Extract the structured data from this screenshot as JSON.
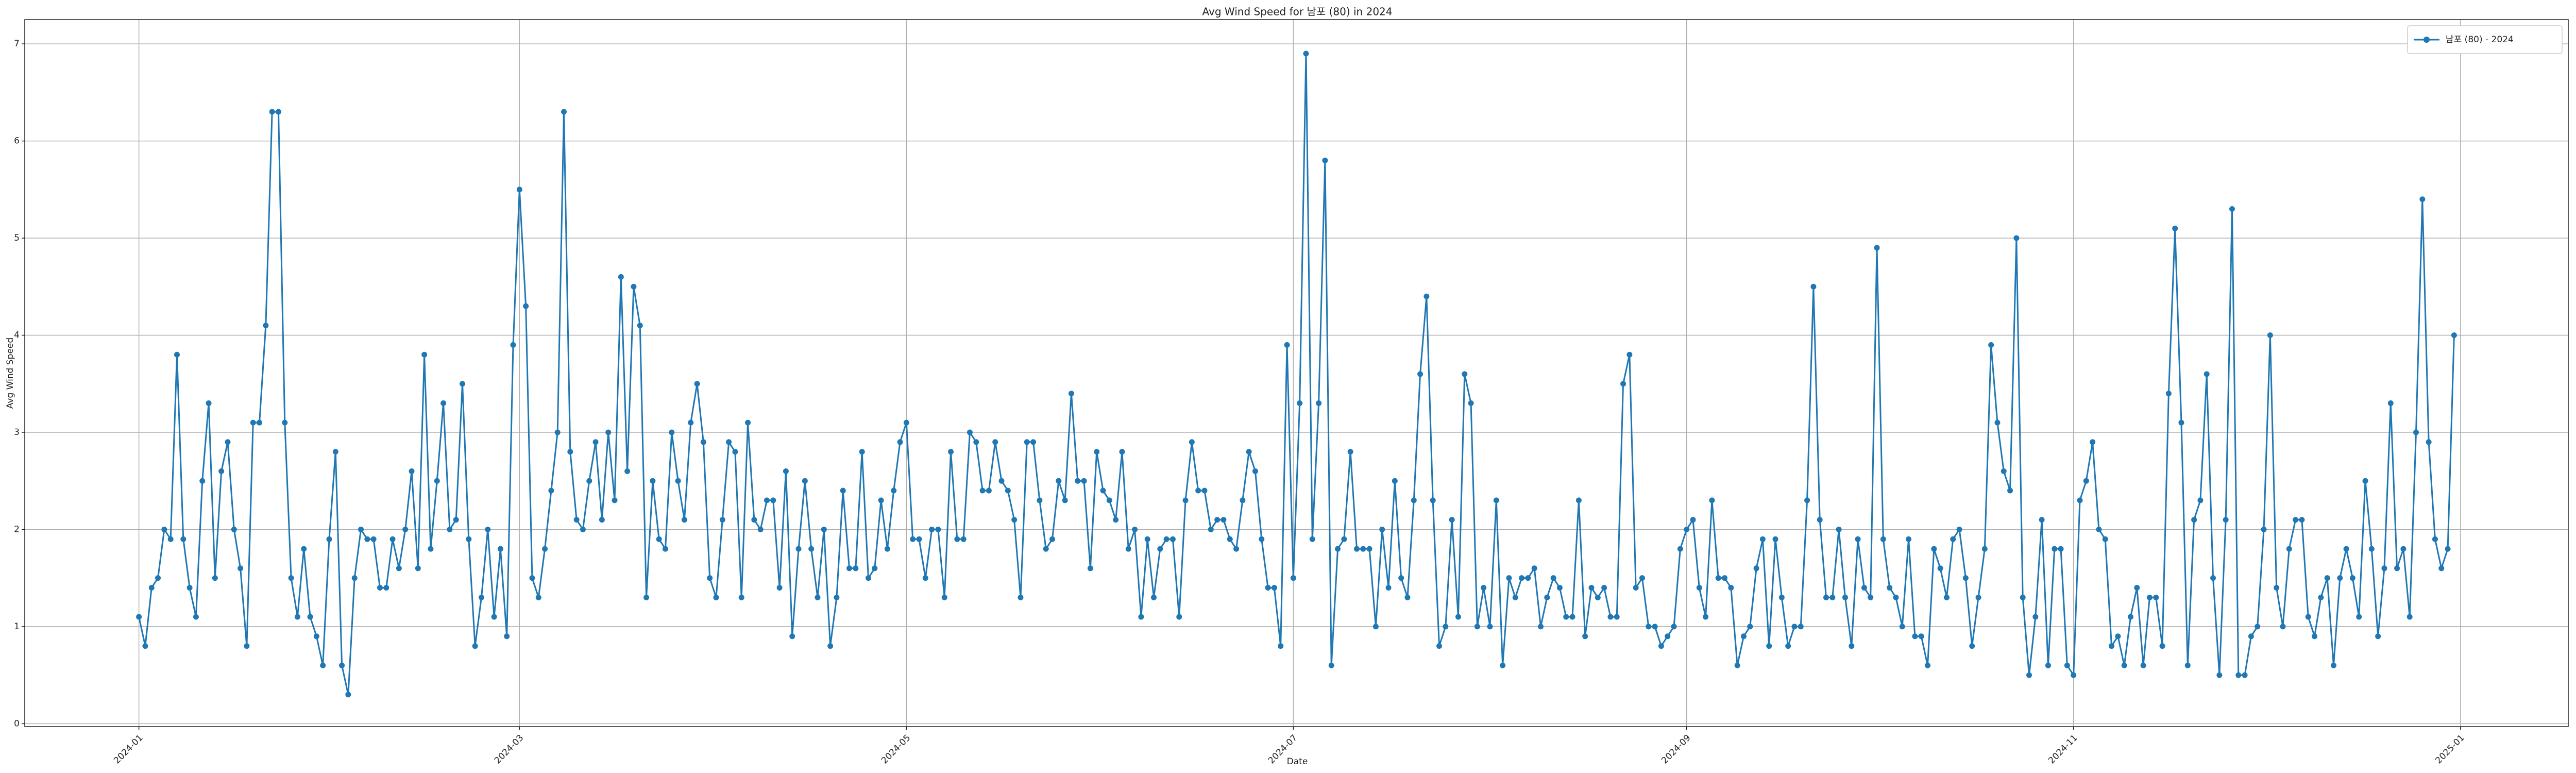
{
  "chart_data": {
    "type": "line",
    "title": "Avg Wind Speed for 남포 (80) in 2024",
    "xlabel": "Date",
    "ylabel": "Avg Wind Speed",
    "series": [
      {
        "name": "남포 (80) - 2024",
        "color": "#1f77b4",
        "values": [
          1.1,
          0.8,
          1.4,
          1.5,
          2.0,
          1.9,
          3.8,
          1.9,
          1.4,
          1.1,
          2.5,
          3.3,
          1.5,
          2.6,
          2.9,
          2.0,
          1.6,
          0.8,
          3.1,
          3.1,
          4.1,
          6.3,
          6.3,
          3.1,
          1.5,
          1.1,
          1.8,
          1.1,
          0.9,
          0.6,
          1.9,
          2.8,
          0.6,
          0.3,
          1.5,
          2.0,
          1.9,
          1.9,
          1.4,
          1.4,
          1.9,
          1.6,
          2.0,
          2.6,
          1.6,
          3.8,
          1.8,
          2.5,
          3.3,
          2.0,
          2.1,
          3.5,
          1.9,
          0.8,
          1.3,
          2.0,
          1.1,
          1.8,
          0.9,
          3.9,
          5.5,
          4.3,
          1.5,
          1.3,
          1.8,
          2.4,
          3.0,
          6.3,
          2.8,
          2.1,
          2.0,
          2.5,
          2.9,
          2.1,
          3.0,
          2.3,
          4.6,
          2.6,
          4.5,
          4.1,
          1.3,
          2.5,
          1.9,
          1.8,
          3.0,
          2.5,
          2.1,
          3.1,
          3.5,
          2.9,
          1.5,
          1.3,
          2.1,
          2.9,
          2.8,
          1.3,
          3.1,
          2.1,
          2.0,
          2.3,
          2.3,
          1.4,
          2.6,
          0.9,
          1.8,
          2.5,
          1.8,
          1.3,
          2.0,
          0.8,
          1.3,
          2.4,
          1.6,
          1.6,
          2.8,
          1.5,
          1.6,
          2.3,
          1.8,
          2.4,
          2.9,
          3.1,
          1.9,
          1.9,
          1.5,
          2.0,
          2.0,
          1.3,
          2.8,
          1.9,
          1.9,
          3.0,
          2.9,
          2.4,
          2.4,
          2.9,
          2.5,
          2.4,
          2.1,
          1.3,
          2.9,
          2.9,
          2.3,
          1.8,
          1.9,
          2.5,
          2.3,
          3.4,
          2.5,
          2.5,
          1.6,
          2.8,
          2.4,
          2.3,
          2.1,
          2.8,
          1.8,
          2.0,
          1.1,
          1.9,
          1.3,
          1.8,
          1.9,
          1.9,
          1.1,
          2.3,
          2.9,
          2.4,
          2.4,
          2.0,
          2.1,
          2.1,
          1.9,
          1.8,
          2.3,
          2.8,
          2.6,
          1.9,
          1.4,
          1.4,
          0.8,
          3.9,
          1.5,
          3.3,
          6.9,
          1.9,
          3.3,
          5.8,
          0.6,
          1.8,
          1.9,
          2.8,
          1.8,
          1.8,
          1.8,
          1.0,
          2.0,
          1.4,
          2.5,
          1.5,
          1.3,
          2.3,
          3.6,
          4.4,
          2.3,
          0.8,
          1.0,
          2.1,
          1.1,
          3.6,
          3.3,
          1.0,
          1.4,
          1.0,
          2.3,
          0.6,
          1.5,
          1.3,
          1.5,
          1.5,
          1.6,
          1.0,
          1.3,
          1.5,
          1.4,
          1.1,
          1.1,
          2.3,
          0.9,
          1.4,
          1.3,
          1.4,
          1.1,
          1.1,
          3.5,
          3.8,
          1.4,
          1.5,
          1.0,
          1.0,
          0.8,
          0.9,
          1.0,
          1.8,
          2.0,
          2.1,
          1.4,
          1.1,
          2.3,
          1.5,
          1.5,
          1.4,
          0.6,
          0.9,
          1.0,
          1.6,
          1.9,
          0.8,
          1.9,
          1.3,
          0.8,
          1.0,
          1.0,
          2.3,
          4.5,
          2.1,
          1.3,
          1.3,
          2.0,
          1.3,
          0.8,
          1.9,
          1.4,
          1.3,
          4.9,
          1.9,
          1.4,
          1.3,
          1.0,
          1.9,
          0.9,
          0.9,
          0.6,
          1.8,
          1.6,
          1.3,
          1.9,
          2.0,
          1.5,
          0.8,
          1.3,
          1.8,
          3.9,
          3.1,
          2.6,
          2.4,
          5.0,
          1.3,
          0.5,
          1.1,
          2.1,
          0.6,
          1.8,
          1.8,
          0.6,
          0.5,
          2.3,
          2.5,
          2.9,
          2.0,
          1.9,
          0.8,
          0.9,
          0.6,
          1.1,
          1.4,
          0.6,
          1.3,
          1.3,
          0.8,
          3.4,
          5.1,
          3.1,
          0.6,
          2.1,
          2.3,
          3.6,
          1.5,
          0.5,
          2.1,
          5.3,
          0.5,
          0.5,
          0.9,
          1.0,
          2.0,
          4.0,
          1.4,
          1.0,
          1.8,
          2.1,
          2.1,
          1.1,
          0.9,
          1.3,
          1.5,
          0.6,
          1.5,
          1.8,
          1.5,
          1.1,
          2.5,
          1.8,
          0.9,
          1.6,
          3.3,
          1.6,
          1.8,
          1.1,
          3.0,
          5.4,
          2.9,
          1.9,
          1.6,
          1.8,
          4.0
        ]
      }
    ],
    "xlim": [
      -18,
      383
    ],
    "xticks": [
      {
        "value": 0,
        "label": "2024-01"
      },
      {
        "value": 60,
        "label": "2024-03"
      },
      {
        "value": 121,
        "label": "2024-05"
      },
      {
        "value": 182,
        "label": "2024-07"
      },
      {
        "value": 244,
        "label": "2024-09"
      },
      {
        "value": 305,
        "label": "2024-11"
      },
      {
        "value": 366,
        "label": "2025-01"
      }
    ],
    "ylim": [
      -0.03,
      7.25
    ],
    "yticks": [
      0,
      1,
      2,
      3,
      4,
      5,
      6,
      7
    ],
    "grid": true,
    "legend": "upper right",
    "marker": "o"
  }
}
